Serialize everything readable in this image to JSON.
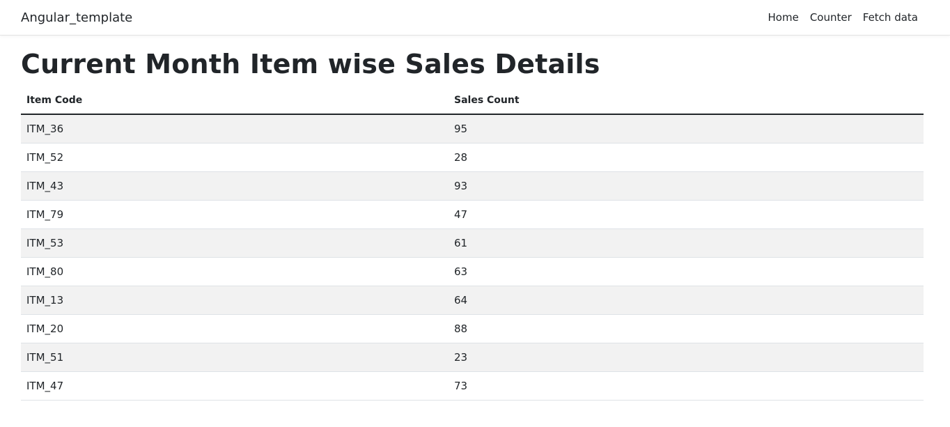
{
  "nav": {
    "brand": "Angular_template",
    "links": [
      "Home",
      "Counter",
      "Fetch data"
    ]
  },
  "page": {
    "title": "Current Month Item wise Sales Details"
  },
  "table": {
    "headers": [
      "Item Code",
      "Sales Count"
    ],
    "rows": [
      [
        "ITM_36",
        "95"
      ],
      [
        "ITM_52",
        "28"
      ],
      [
        "ITM_43",
        "93"
      ],
      [
        "ITM_79",
        "47"
      ],
      [
        "ITM_53",
        "61"
      ],
      [
        "ITM_80",
        "63"
      ],
      [
        "ITM_13",
        "64"
      ],
      [
        "ITM_20",
        "88"
      ],
      [
        "ITM_51",
        "23"
      ],
      [
        "ITM_47",
        "73"
      ]
    ]
  }
}
